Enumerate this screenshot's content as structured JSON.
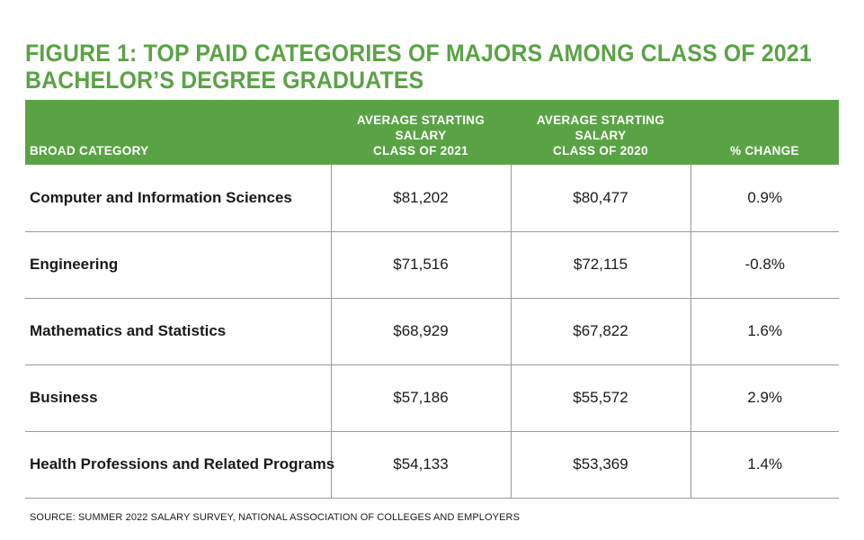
{
  "chart_data": {
    "type": "table",
    "title_lines": [
      "FIGURE 1: TOP PAID CATEGORIES OF MAJORS AMONG CLASS OF 2021",
      "BACHELOR’S DEGREE GRADUATES"
    ],
    "columns": [
      [
        "BROAD CATEGORY"
      ],
      [
        "AVERAGE STARTING",
        "SALARY",
        "CLASS OF 2021"
      ],
      [
        "AVERAGE STARTING",
        "SALARY",
        "CLASS OF 2020"
      ],
      [
        "% CHANGE"
      ]
    ],
    "rows": [
      {
        "category": "Computer and Information Sciences",
        "salary_2021": "$81,202",
        "salary_2020": "$80,477",
        "change": "0.9%"
      },
      {
        "category": "Engineering",
        "salary_2021": "$71,516",
        "salary_2020": "$72,115",
        "change": "-0.8%"
      },
      {
        "category": "Mathematics and Statistics",
        "salary_2021": "$68,929",
        "salary_2020": "$67,822",
        "change": "1.6%"
      },
      {
        "category": "Business",
        "salary_2021": "$57,186",
        "salary_2020": "$55,572",
        "change": "2.9%"
      },
      {
        "category": "Health Professions and Related Programs",
        "salary_2021": "$54,133",
        "salary_2020": "$53,369",
        "change": "1.4%"
      }
    ],
    "source": "SOURCE: SUMMER 2022 SALARY SURVEY, NATIONAL ASSOCIATION OF COLLEGES AND EMPLOYERS"
  },
  "colors": {
    "accent": "#5aa345",
    "header_text": "#ffffff",
    "rule": "#9a9a9a"
  }
}
